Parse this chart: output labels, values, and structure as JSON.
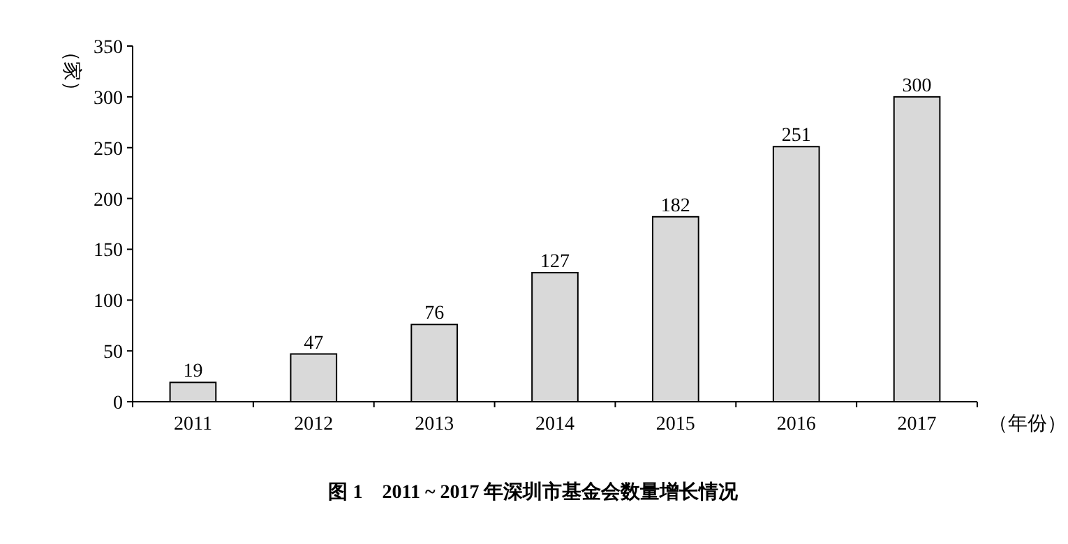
{
  "chart_data": {
    "type": "bar",
    "title": "图 1　2011 ~ 2017 年深圳市基金会数量增长情况",
    "ylabel": "（家）",
    "xlabel": "（年份）",
    "categories": [
      "2011",
      "2012",
      "2013",
      "2014",
      "2015",
      "2016",
      "2017"
    ],
    "values": [
      19,
      47,
      76,
      127,
      182,
      251,
      300
    ],
    "color": "#d9d9d9",
    "ylim": [
      0,
      350
    ],
    "yticks": [
      0,
      50,
      100,
      150,
      200,
      250,
      300,
      350
    ],
    "data_labels": true,
    "grid": false
  }
}
